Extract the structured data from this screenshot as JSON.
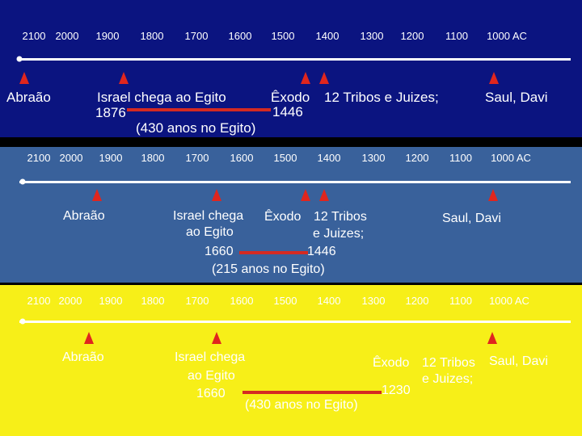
{
  "ticks": [
    "2100",
    "2000",
    "1900",
    "1800",
    "1700",
    "1600",
    "1500",
    "1400",
    "1300",
    "1200",
    "1100",
    "1000 AC"
  ],
  "panel1": {
    "abraao": "Abraão",
    "israel": "Israel chega ao Egito",
    "israel_year": "1876",
    "exodo": "Êxodo",
    "exodo_year": "1446",
    "tribos": "12 Tribos e Juizes;",
    "saul": "Saul, Davi",
    "duration": "(430 anos no Egito)",
    "colors": {
      "background": "#0b1480",
      "marker": "#e0261e"
    }
  },
  "panel2": {
    "abraao": "Abraão",
    "israel_line1": "Israel chega",
    "israel_line2": "ao Egito",
    "israel_year": "1660",
    "exodo": "Êxodo",
    "tribos_line1": "12 Tribos",
    "tribos_line2": "e Juizes;",
    "exodo_year": "1446",
    "saul": "Saul, Davi",
    "duration": "(215 anos no Egito)",
    "colors": {
      "background": "#39619b"
    }
  },
  "panel3": {
    "abraao": "Abraão",
    "israel_line1": "Israel chega",
    "israel_line2": "ao Egito",
    "israel_year": "1660",
    "exodo": "Êxodo",
    "tribos_line1": "12 Tribos",
    "tribos_line2": "e Juizes;",
    "exodo_year": "1230",
    "saul": "Saul, Davi",
    "duration": "(430 anos no Egito)",
    "colors": {
      "background": "#f7ef18"
    }
  }
}
